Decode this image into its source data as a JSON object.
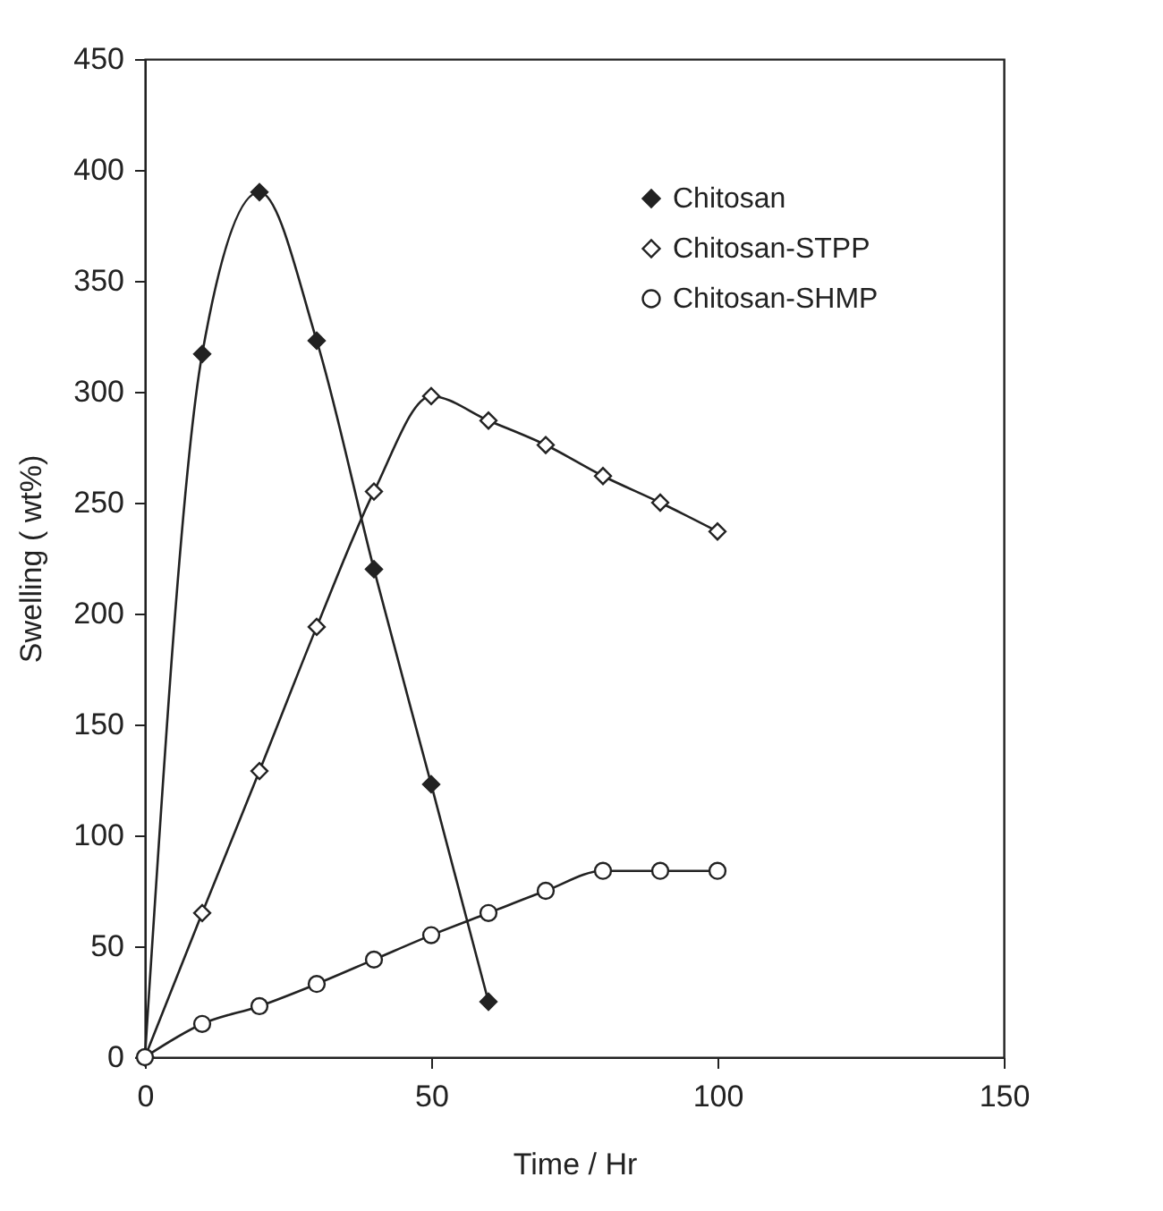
{
  "chart_data": {
    "type": "line",
    "xlabel": "Time / Hr",
    "ylabel": "Swelling ( wt%)",
    "x": [
      0,
      10,
      20,
      30,
      40,
      50,
      60,
      70,
      80,
      90,
      100
    ],
    "xlim": [
      0,
      150
    ],
    "xticks": [
      0,
      50,
      100,
      150
    ],
    "ylim": [
      0,
      450
    ],
    "yticks": [
      0,
      50,
      100,
      150,
      200,
      250,
      300,
      350,
      400,
      450
    ],
    "grid": false,
    "legend": "top right",
    "series": [
      {
        "name": "Chitosan",
        "color": "#222222",
        "marker": "diamond",
        "values": [
          0,
          317,
          390,
          323,
          220,
          123,
          25,
          null,
          null,
          null,
          null
        ]
      },
      {
        "name": "Chitosan-STPP",
        "color": "#222222",
        "marker": "diamond",
        "values": [
          0,
          65,
          129,
          194,
          255,
          298,
          287,
          276,
          262,
          250,
          237
        ]
      },
      {
        "name": "Chitosan-SHMP",
        "color": "#222222",
        "marker": "circle",
        "values": [
          0,
          15,
          23,
          33,
          44,
          55,
          65,
          75,
          84,
          84,
          84
        ]
      }
    ]
  }
}
